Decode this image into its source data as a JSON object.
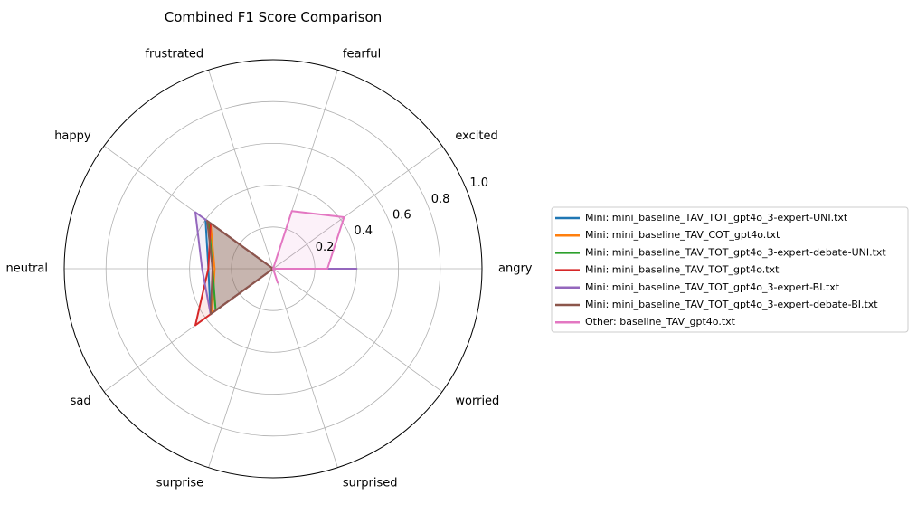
{
  "chart_data": {
    "type": "radar",
    "title": "Combined F1 Score Comparison",
    "categories": [
      "angry",
      "excited",
      "fearful",
      "frustrated",
      "happy",
      "neutral",
      "sad",
      "surprise",
      "surprised",
      "worried"
    ],
    "r_ticks": [
      {
        "value": 0.2,
        "label": "0.2"
      },
      {
        "value": 0.4,
        "label": "0.4"
      },
      {
        "value": 0.6,
        "label": "0.6"
      },
      {
        "value": 0.8,
        "label": "0.8"
      },
      {
        "value": 1.0,
        "label": "1.0"
      }
    ],
    "rlim": [
      0,
      1
    ],
    "grid": true,
    "legend_position": "right",
    "series": [
      {
        "name": "Mini: mini_baseline_TAV_TOT_gpt4o_3-expert-UNI.txt",
        "color": "#1f77b4",
        "values": [
          0.0,
          0.0,
          0.0,
          0.0,
          0.4,
          0.31,
          0.37,
          0.0,
          0.0,
          0.0
        ]
      },
      {
        "name": "Mini: mini_baseline_TAV_COT_gpt4o.txt",
        "color": "#ff7f0e",
        "values": [
          0.0,
          0.0,
          0.0,
          0.0,
          0.37,
          0.28,
          0.36,
          0.0,
          0.0,
          0.0
        ]
      },
      {
        "name": "Mini: mini_baseline_TAV_TOT_gpt4o_3-expert-debate-UNI.txt",
        "color": "#2ca02c",
        "values": [
          0.0,
          0.0,
          0.0,
          0.0,
          0.38,
          0.29,
          0.34,
          0.0,
          0.0,
          0.0
        ]
      },
      {
        "name": "Mini: mini_baseline_TAV_TOT_gpt4o.txt",
        "color": "#d62728",
        "values": [
          0.0,
          0.0,
          0.0,
          0.0,
          0.37,
          0.31,
          0.46,
          0.0,
          0.0,
          0.0
        ]
      },
      {
        "name": "Mini: mini_baseline_TAV_TOT_gpt4o_3-expert-BI.txt",
        "color": "#9467bd",
        "values": [
          0.4,
          0.0,
          0.0,
          0.0,
          0.46,
          0.34,
          0.37,
          0.0,
          0.0,
          0.0
        ]
      },
      {
        "name": "Mini: mini_baseline_TAV_TOT_gpt4o_3-expert-debate-BI.txt",
        "color": "#8c564b",
        "values": [
          0.0,
          0.0,
          0.0,
          0.0,
          0.39,
          0.29,
          0.37,
          0.0,
          0.0,
          0.0
        ]
      },
      {
        "name": "Other: baseline_TAV_gpt4o.txt",
        "color": "#e377c2",
        "values": [
          0.26,
          0.42,
          0.29,
          0.0,
          0.0,
          0.0,
          0.0,
          0.0,
          0.07,
          0.0
        ]
      }
    ]
  }
}
